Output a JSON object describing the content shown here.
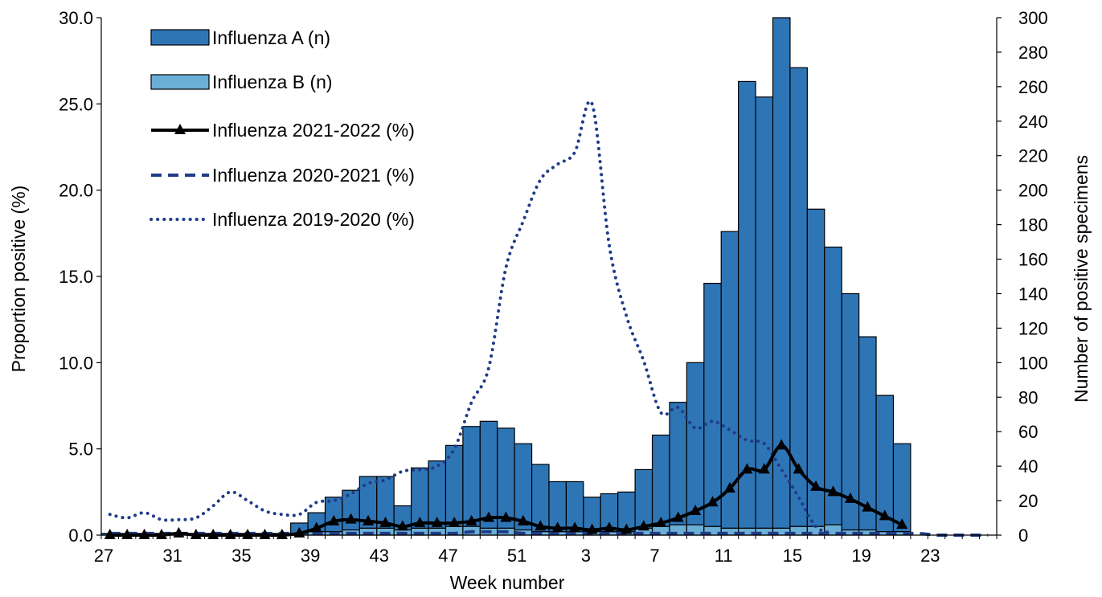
{
  "chart_data": {
    "type": "bar",
    "title": "",
    "xlabel": "Week number",
    "ylabel_left": "Proportion positive (%)",
    "ylabel_right": "Number of positive specimens",
    "ylim_left": [
      0,
      30
    ],
    "ylim_right": [
      0,
      300
    ],
    "yticks_left": [
      "0.0",
      "5.0",
      "10.0",
      "15.0",
      "20.0",
      "25.0",
      "30.0"
    ],
    "yticks_right": [
      "0",
      "20",
      "40",
      "60",
      "80",
      "100",
      "120",
      "140",
      "160",
      "180",
      "200",
      "220",
      "240",
      "260",
      "280",
      "300"
    ],
    "weeks": [
      27,
      28,
      29,
      30,
      31,
      32,
      33,
      34,
      35,
      36,
      37,
      38,
      39,
      40,
      41,
      42,
      43,
      44,
      45,
      46,
      47,
      48,
      49,
      50,
      51,
      52,
      1,
      2,
      3,
      4,
      5,
      6,
      7,
      8,
      9,
      10,
      11,
      12,
      13,
      14,
      15,
      16,
      17,
      18,
      19,
      20,
      21,
      22,
      23,
      24,
      25,
      26
    ],
    "x_tick_labels": [
      "27",
      "31",
      "35",
      "39",
      "43",
      "47",
      "51",
      "3",
      "7",
      "11",
      "15",
      "19",
      "23"
    ],
    "legend_position": "top-left",
    "grid": false,
    "colors": {
      "influenza_a": "#2E75B6",
      "influenza_b": "#6BAED6",
      "line_2021_2022": "#000000",
      "line_2020_2021": "#1F3C88",
      "line_2019_2020": "#1F3C88"
    },
    "series": [
      {
        "name": "Influenza A (n)",
        "axis": "right",
        "style": "bar",
        "values": [
          1,
          1,
          1,
          1,
          1,
          1,
          1,
          1,
          1,
          1,
          1,
          6,
          11,
          20,
          23,
          30,
          30,
          14,
          35,
          39,
          47,
          58,
          62,
          58,
          50,
          39,
          29,
          29,
          20,
          22,
          23,
          34,
          53,
          71,
          94,
          141,
          172,
          259,
          250,
          296,
          266,
          184,
          161,
          137,
          112,
          79,
          51,
          0,
          0,
          0,
          0,
          0
        ]
      },
      {
        "name": "Influenza B (n)",
        "axis": "right",
        "style": "bar",
        "values": [
          0,
          0,
          0,
          0,
          0,
          0,
          0,
          0,
          0,
          0,
          0,
          1,
          2,
          2,
          3,
          4,
          4,
          3,
          4,
          4,
          5,
          5,
          4,
          4,
          3,
          2,
          2,
          2,
          2,
          2,
          2,
          4,
          5,
          6,
          6,
          5,
          4,
          4,
          4,
          4,
          5,
          5,
          6,
          3,
          3,
          2,
          2,
          0,
          0,
          0,
          0,
          0
        ]
      },
      {
        "name": "Influenza 2021-2022 (%)",
        "axis": "left",
        "style": "solid-line-triangles",
        "values": [
          0.0,
          0.0,
          0.0,
          0.0,
          0.1,
          0.0,
          0.0,
          0.0,
          0.0,
          0.0,
          0.0,
          0.1,
          0.4,
          0.8,
          0.9,
          0.8,
          0.7,
          0.5,
          0.7,
          0.7,
          0.7,
          0.8,
          1.0,
          1.0,
          0.8,
          0.5,
          0.4,
          0.4,
          0.3,
          0.4,
          0.3,
          0.5,
          0.7,
          1.0,
          1.4,
          1.9,
          2.7,
          3.8,
          3.8,
          5.2,
          3.8,
          2.8,
          2.5,
          2.1,
          1.6,
          1.1,
          0.6,
          null,
          null,
          null,
          null,
          null
        ]
      },
      {
        "name": "Influenza 2020-2021 (%)",
        "axis": "left",
        "style": "dashed-line",
        "values": [
          0.1,
          0.1,
          0.1,
          0.1,
          0.1,
          0.1,
          0.1,
          0.1,
          0.1,
          0.1,
          0.1,
          0.1,
          0.1,
          0.1,
          0.1,
          0.1,
          0.1,
          0.1,
          0.1,
          0.1,
          0.1,
          0.2,
          0.2,
          0.2,
          0.1,
          0.1,
          0.1,
          0.1,
          0.1,
          0.1,
          0.1,
          0.1,
          0.1,
          0.1,
          0.1,
          0.1,
          0.1,
          0.1,
          0.1,
          0.1,
          0.1,
          0.1,
          0.1,
          0.1,
          0.1,
          0.1,
          0.1,
          0.1,
          0.0,
          0.0,
          0.0,
          0.0
        ]
      },
      {
        "name": "Influenza 2019-2020 (%)",
        "axis": "left",
        "style": "dotted-line",
        "values": [
          1.2,
          1.0,
          1.3,
          0.9,
          0.9,
          1.0,
          1.7,
          2.5,
          2.0,
          1.4,
          1.2,
          1.2,
          1.9,
          2.0,
          2.4,
          3.0,
          3.2,
          3.7,
          3.8,
          4.0,
          5.0,
          7.7,
          9.7,
          15.5,
          18.2,
          20.6,
          21.5,
          22.2,
          25.0,
          16.8,
          12.7,
          10.1,
          7.1,
          7.4,
          6.2,
          6.6,
          6.1,
          5.5,
          5.3,
          3.8,
          2.2,
          0.5,
          0.1,
          null,
          null,
          null,
          null,
          null,
          null,
          null,
          null,
          null
        ]
      }
    ]
  }
}
